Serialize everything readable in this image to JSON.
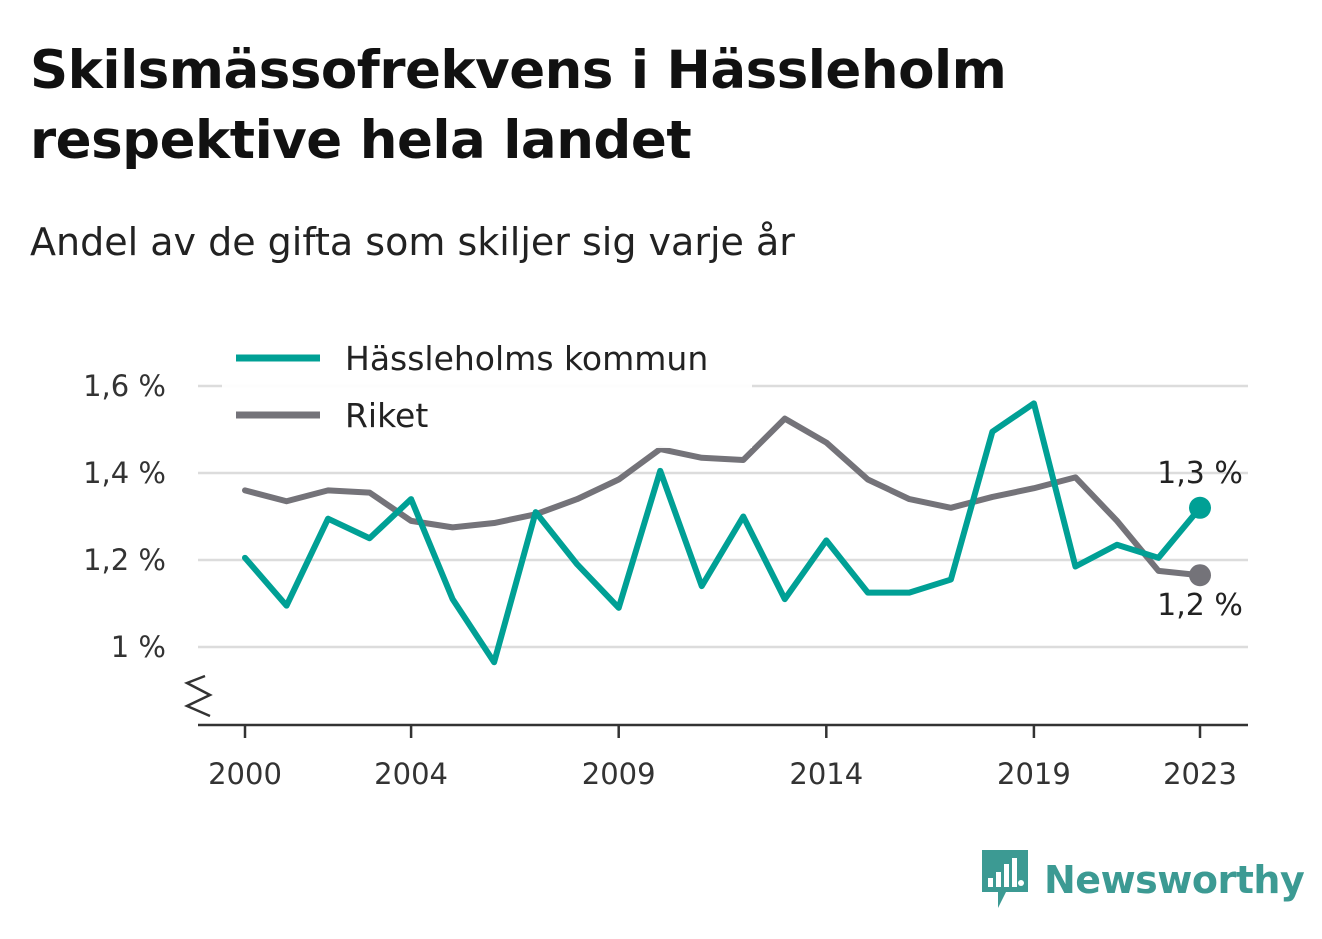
{
  "title": "Skilsmässofrekvens i Hässleholm respektive hela landet",
  "subtitle": "Andel av de gifta som skiljer sig varje år",
  "brand": {
    "name": "Newsworthy",
    "icon": "bar-chart-speech-bubble-icon",
    "color": "#3c9a93"
  },
  "colors": {
    "hassleholm": "#00a095",
    "riket": "#747379",
    "grid": "#dcdcdc",
    "axis": "#333333"
  },
  "chart_data": {
    "type": "line",
    "x": [
      2000,
      2001,
      2002,
      2003,
      2004,
      2005,
      2006,
      2007,
      2008,
      2009,
      2010,
      2011,
      2012,
      2013,
      2014,
      2015,
      2016,
      2017,
      2018,
      2019,
      2020,
      2021,
      2022,
      2023
    ],
    "x_ticks": [
      2000,
      2004,
      2009,
      2014,
      2019,
      2023
    ],
    "y_ticks": [
      1.0,
      1.2,
      1.4,
      1.6
    ],
    "y_tick_labels": [
      "1 %",
      "1,2 %",
      "1,4 %",
      "1,6 %"
    ],
    "ylim": [
      0.82,
      1.62
    ],
    "y_axis_break": true,
    "grid": true,
    "legend_position": "top-left",
    "series": [
      {
        "name": "Hässleholms kommun",
        "color_key": "hassleholm",
        "values": [
          1.205,
          1.095,
          1.295,
          1.25,
          1.34,
          1.11,
          0.965,
          1.31,
          1.19,
          1.09,
          1.405,
          1.14,
          1.3,
          1.11,
          1.245,
          1.125,
          1.125,
          1.155,
          1.495,
          1.56,
          1.185,
          1.235,
          1.205,
          1.32
        ],
        "end_label": "1,3 %"
      },
      {
        "name": "Riket",
        "color_key": "riket",
        "values": [
          1.36,
          1.335,
          1.36,
          1.355,
          1.29,
          1.275,
          1.285,
          1.305,
          1.34,
          1.385,
          1.455,
          1.435,
          1.43,
          1.525,
          1.47,
          1.385,
          1.34,
          1.32,
          1.345,
          1.365,
          1.39,
          1.29,
          1.175,
          1.165
        ],
        "end_label": "1,2 %"
      }
    ]
  }
}
